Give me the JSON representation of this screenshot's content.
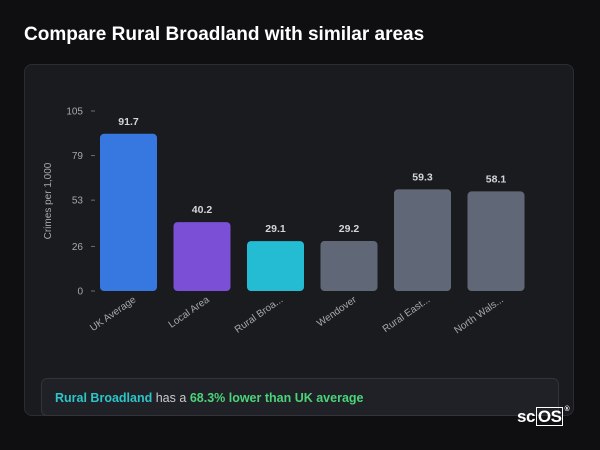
{
  "page": {
    "title": "Compare Rural Broadland with similar areas"
  },
  "summary": {
    "area": "Rural Broadland",
    "middle": "has a",
    "highlight": "68.3% lower than UK average"
  },
  "logo": {
    "text_plain": "sc",
    "text_boxed": "OS",
    "reg": "®"
  },
  "chart_data": {
    "type": "bar",
    "ylabel": "Crimes per 1,000",
    "xlabel": "",
    "ylim": [
      0,
      105
    ],
    "yticks": [
      0,
      26,
      53,
      79,
      105
    ],
    "grid": false,
    "categories": [
      "UK Average",
      "Local Area",
      "Rural Broa...",
      "Wendover",
      "Rural East...",
      "North Wals..."
    ],
    "values": [
      91.7,
      40.2,
      29.1,
      29.2,
      59.3,
      58.1
    ],
    "value_labels": [
      "91.7",
      "40.2",
      "29.1",
      "29.2",
      "59.3",
      "58.1"
    ],
    "colors": [
      "#3677e0",
      "#7b4fd6",
      "#23bcd2",
      "#606878",
      "#606878",
      "#606878"
    ]
  }
}
